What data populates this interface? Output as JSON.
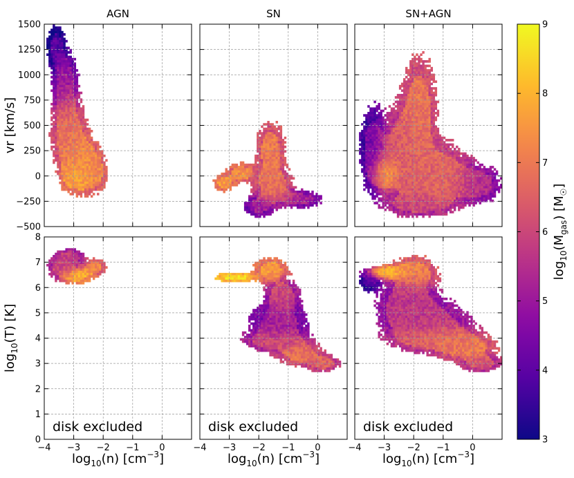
{
  "chart_data": {
    "type": "heatmap",
    "panels": [
      {
        "row": 0,
        "col": 0,
        "title": "AGN",
        "variable": "vr",
        "blobs": [
          {
            "x": -3.6,
            "y": 1280,
            "sx": 0.18,
            "sy": 120,
            "val": 3.8
          },
          {
            "x": -3.3,
            "y": 950,
            "sx": 0.25,
            "sy": 180,
            "val": 4.8
          },
          {
            "x": -3.2,
            "y": 450,
            "sx": 0.35,
            "sy": 250,
            "val": 6.8
          },
          {
            "x": -2.8,
            "y": 150,
            "sx": 0.35,
            "sy": 180,
            "val": 7.4
          },
          {
            "x": -2.9,
            "y": 0,
            "sx": 0.3,
            "sy": 80,
            "val": 8.0
          },
          {
            "x": -2.3,
            "y": 50,
            "sx": 0.25,
            "sy": 130,
            "val": 7.2
          }
        ]
      },
      {
        "row": 0,
        "col": 1,
        "title": "SN",
        "variable": "vr",
        "blobs": [
          {
            "x": -3.2,
            "y": -70,
            "sx": 0.2,
            "sy": 50,
            "val": 7.6
          },
          {
            "x": -2.6,
            "y": 30,
            "sx": 0.3,
            "sy": 60,
            "val": 7.4
          },
          {
            "x": -1.6,
            "y": 250,
            "sx": 0.3,
            "sy": 180,
            "val": 7.0
          },
          {
            "x": -1.5,
            "y": -100,
            "sx": 0.4,
            "sy": 110,
            "val": 6.8
          },
          {
            "x": -0.6,
            "y": -230,
            "sx": 0.45,
            "sy": 50,
            "val": 5.2
          },
          {
            "x": -2.0,
            "y": -300,
            "sx": 0.3,
            "sy": 60,
            "val": 5.0
          }
        ]
      },
      {
        "row": 0,
        "col": 2,
        "title": "SN+AGN",
        "variable": "vr",
        "blobs": [
          {
            "x": -3.4,
            "y": 250,
            "sx": 0.25,
            "sy": 250,
            "val": 4.3
          },
          {
            "x": -3.0,
            "y": 40,
            "sx": 0.25,
            "sy": 90,
            "val": 8.2
          },
          {
            "x": -1.8,
            "y": 650,
            "sx": 0.35,
            "sy": 330,
            "val": 6.9
          },
          {
            "x": -2.4,
            "y": 200,
            "sx": 0.5,
            "sy": 300,
            "val": 6.4
          },
          {
            "x": -1.0,
            "y": 0,
            "sx": 0.6,
            "sy": 200,
            "val": 6.6
          },
          {
            "x": 0.2,
            "y": -80,
            "sx": 0.45,
            "sy": 110,
            "val": 5.4
          },
          {
            "x": -1.8,
            "y": -280,
            "sx": 0.6,
            "sy": 60,
            "val": 5.8
          }
        ]
      },
      {
        "row": 1,
        "col": 0,
        "title": "",
        "variable": "T",
        "blobs": [
          {
            "x": -3.4,
            "y": 6.8,
            "sx": 0.3,
            "sy": 0.3,
            "val": 6.0
          },
          {
            "x": -2.9,
            "y": 6.45,
            "sx": 0.3,
            "sy": 0.18,
            "val": 8.1
          },
          {
            "x": -2.3,
            "y": 6.8,
            "sx": 0.25,
            "sy": 0.2,
            "val": 7.2
          },
          {
            "x": -3.1,
            "y": 7.2,
            "sx": 0.25,
            "sy": 0.2,
            "val": 5.8
          }
        ]
      },
      {
        "row": 1,
        "col": 1,
        "title": "",
        "variable": "T",
        "blobs": [
          {
            "x": -2.8,
            "y": 6.4,
            "sx": 0.4,
            "sy": 0.12,
            "val": 8.7
          },
          {
            "x": -1.6,
            "y": 6.7,
            "sx": 0.35,
            "sy": 0.3,
            "val": 7.6
          },
          {
            "x": -1.2,
            "y": 5.7,
            "sx": 0.35,
            "sy": 0.4,
            "val": 6.0
          },
          {
            "x": -1.3,
            "y": 4.6,
            "sx": 0.6,
            "sy": 0.5,
            "val": 5.2
          },
          {
            "x": -1.5,
            "y": 3.9,
            "sx": 0.6,
            "sy": 0.25,
            "val": 6.2
          },
          {
            "x": -0.6,
            "y": 3.4,
            "sx": 0.45,
            "sy": 0.3,
            "val": 6.9
          },
          {
            "x": 0.2,
            "y": 3.0,
            "sx": 0.35,
            "sy": 0.2,
            "val": 6.5
          }
        ]
      },
      {
        "row": 1,
        "col": 2,
        "title": "",
        "variable": "T",
        "blobs": [
          {
            "x": -3.5,
            "y": 6.3,
            "sx": 0.2,
            "sy": 0.25,
            "val": 3.8
          },
          {
            "x": -2.9,
            "y": 6.6,
            "sx": 0.4,
            "sy": 0.15,
            "val": 8.4
          },
          {
            "x": -2.0,
            "y": 6.6,
            "sx": 0.5,
            "sy": 0.4,
            "val": 7.2
          },
          {
            "x": -2.2,
            "y": 5.4,
            "sx": 0.6,
            "sy": 0.6,
            "val": 5.6
          },
          {
            "x": -1.5,
            "y": 4.5,
            "sx": 0.9,
            "sy": 0.6,
            "val": 5.8
          },
          {
            "x": -1.2,
            "y": 4.0,
            "sx": 0.8,
            "sy": 0.25,
            "val": 7.2
          },
          {
            "x": -0.2,
            "y": 3.6,
            "sx": 0.6,
            "sy": 0.3,
            "val": 7.1
          },
          {
            "x": 0.3,
            "y": 3.0,
            "sx": 0.4,
            "sy": 0.2,
            "val": 6.2
          }
        ]
      }
    ],
    "annotation": "disk excluded",
    "xlabel": "log$_{10}$(n) [cm$^{-3}$]",
    "xlabel_parts": {
      "base": "log",
      "sub": "10",
      "mid": "(n) [cm",
      "sup": "−3",
      "end": "]"
    },
    "xlim": [
      -4,
      1
    ],
    "xticks": [
      "−4",
      "−3",
      "−2",
      "−1",
      "0"
    ],
    "row0": {
      "ylabel": "vr [km/s]",
      "ylim": [
        -500,
        1500
      ],
      "yticks": [
        "−500",
        "−250",
        "0",
        "250",
        "500",
        "750",
        "1000",
        "1250",
        "1500"
      ]
    },
    "row1": {
      "ylabel_parts": {
        "base": "log",
        "sub": "10",
        "end": "(T) [K]"
      },
      "ylim": [
        0,
        8
      ],
      "yticks": [
        "0",
        "1",
        "2",
        "3",
        "4",
        "5",
        "6",
        "7",
        "8"
      ]
    },
    "colorbar": {
      "label_parts": {
        "base": "log",
        "sub": "10",
        "mid": "(M",
        "sub2": "gas",
        "end": ") [M",
        "sun": "☉",
        "close": "]"
      },
      "range": [
        3,
        9
      ],
      "ticks": [
        "3",
        "4",
        "5",
        "6",
        "7",
        "8",
        "9"
      ],
      "colormap": "plasma"
    },
    "grid": true
  }
}
